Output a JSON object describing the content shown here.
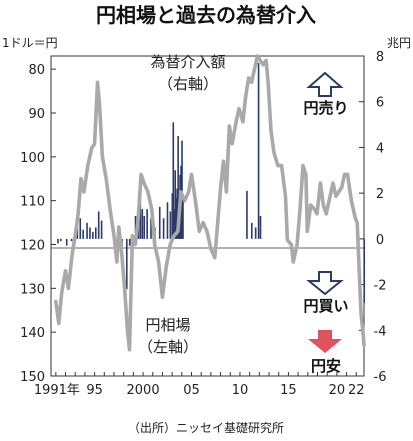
{
  "chart_data": {
    "type": "line",
    "title": "円相場と過去の為替介入",
    "left_axis_unit": "1ドル＝円",
    "right_axis_unit": "兆円",
    "left_axis": {
      "range": [
        150,
        77
      ],
      "ticks": [
        80,
        90,
        100,
        110,
        120,
        130,
        140,
        150
      ],
      "inverted": true
    },
    "right_axis": {
      "range": [
        -6,
        8
      ],
      "ticks": [
        8,
        6,
        4,
        2,
        0,
        -2,
        -4,
        -6
      ]
    },
    "x_range": [
      1990.5,
      2022.8
    ],
    "x_ticks": [
      {
        "v": 1991,
        "label": "1991年"
      },
      {
        "v": 1995,
        "label": "95"
      },
      {
        "v": 2000,
        "label": "2000"
      },
      {
        "v": 2005,
        "label": "05"
      },
      {
        "v": 2010,
        "label": "10"
      },
      {
        "v": 2015,
        "label": "15"
      },
      {
        "v": 2020,
        "label": "20"
      },
      {
        "v": 2022,
        "label": "22"
      }
    ],
    "annotations": {
      "intervention_label": "為替介入額",
      "intervention_axis": "（右軸）",
      "rate_label": "円相場",
      "rate_axis": "（左軸）",
      "yen_sell": "円売り",
      "yen_buy": "円買い",
      "yen_weak": "円安"
    },
    "source": "（出所）ニッセイ基礎研究所",
    "colors": {
      "rate_line": "#a9a9a9",
      "bars": "#2b3a67",
      "arrow_down": "#e0535c",
      "outline_arrow": "#2b3a67"
    },
    "series": [
      {
        "axis": "left",
        "points": [
          [
            1991.0,
            133
          ],
          [
            1991.3,
            138
          ],
          [
            1991.6,
            131
          ],
          [
            1992.0,
            126
          ],
          [
            1992.3,
            130
          ],
          [
            1992.7,
            122
          ],
          [
            1993.0,
            118
          ],
          [
            1993.3,
            113
          ],
          [
            1993.6,
            105
          ],
          [
            1993.9,
            108
          ],
          [
            1994.3,
            102
          ],
          [
            1994.7,
            98
          ],
          [
            1995.0,
            97
          ],
          [
            1995.3,
            83
          ],
          [
            1995.5,
            88
          ],
          [
            1995.8,
            100
          ],
          [
            1996.2,
            105
          ],
          [
            1996.6,
            112
          ],
          [
            1997.0,
            118
          ],
          [
            1997.3,
            124
          ],
          [
            1997.5,
            116
          ],
          [
            1997.8,
            122
          ],
          [
            1998.1,
            130
          ],
          [
            1998.4,
            140
          ],
          [
            1998.6,
            144
          ],
          [
            1998.9,
            118
          ],
          [
            1999.2,
            120
          ],
          [
            1999.5,
            114
          ],
          [
            1999.8,
            104
          ],
          [
            2000.1,
            106
          ],
          [
            2000.5,
            108
          ],
          [
            2000.9,
            112
          ],
          [
            2001.2,
            120
          ],
          [
            2001.6,
            124
          ],
          [
            2002.0,
            132
          ],
          [
            2002.4,
            125
          ],
          [
            2002.8,
            120
          ],
          [
            2003.2,
            118
          ],
          [
            2003.6,
            117
          ],
          [
            2003.9,
            108
          ],
          [
            2004.3,
            110
          ],
          [
            2004.7,
            108
          ],
          [
            2005.0,
            104
          ],
          [
            2005.4,
            110
          ],
          [
            2005.8,
            117
          ],
          [
            2006.2,
            115
          ],
          [
            2006.6,
            117
          ],
          [
            2007.0,
            121
          ],
          [
            2007.4,
            123
          ],
          [
            2007.7,
            115
          ],
          [
            2008.0,
            107
          ],
          [
            2008.3,
            101
          ],
          [
            2008.6,
            108
          ],
          [
            2008.9,
            93
          ],
          [
            2009.2,
            97
          ],
          [
            2009.6,
            92
          ],
          [
            2009.9,
            89
          ],
          [
            2010.3,
            92
          ],
          [
            2010.6,
            86
          ],
          [
            2010.9,
            82
          ],
          [
            2011.2,
            83
          ],
          [
            2011.5,
            80
          ],
          [
            2011.8,
            77
          ],
          [
            2012.1,
            78
          ],
          [
            2012.4,
            79
          ],
          [
            2012.7,
            78
          ],
          [
            2012.9,
            83
          ],
          [
            2013.2,
            94
          ],
          [
            2013.5,
            99
          ],
          [
            2013.9,
            102
          ],
          [
            2014.3,
            102
          ],
          [
            2014.7,
            109
          ],
          [
            2014.9,
            119
          ],
          [
            2015.3,
            120
          ],
          [
            2015.5,
            124
          ],
          [
            2015.9,
            120
          ],
          [
            2016.2,
            112
          ],
          [
            2016.5,
            102
          ],
          [
            2016.8,
            104
          ],
          [
            2016.95,
            117
          ],
          [
            2017.3,
            111
          ],
          [
            2017.7,
            112
          ],
          [
            2017.95,
            113
          ],
          [
            2018.3,
            106
          ],
          [
            2018.6,
            111
          ],
          [
            2018.9,
            113
          ],
          [
            2019.2,
            110
          ],
          [
            2019.6,
            106
          ],
          [
            2019.9,
            109
          ],
          [
            2020.2,
            108
          ],
          [
            2020.5,
            107
          ],
          [
            2020.8,
            104
          ],
          [
            2021.1,
            104
          ],
          [
            2021.5,
            110
          ],
          [
            2021.9,
            114
          ],
          [
            2022.1,
            115
          ],
          [
            2022.3,
            126
          ],
          [
            2022.5,
            136
          ],
          [
            2022.7,
            140
          ],
          [
            2022.8,
            143
          ]
        ]
      },
      {
        "axis": "right",
        "type": "bar",
        "points": [
          [
            1991.2,
            -0.2
          ],
          [
            1991.5,
            -0.1
          ],
          [
            1992.1,
            -0.3
          ],
          [
            1992.6,
            -0.1
          ],
          [
            1993.2,
            0.6
          ],
          [
            1993.5,
            0.9
          ],
          [
            1993.8,
            0.4
          ],
          [
            1994.2,
            0.7
          ],
          [
            1994.5,
            0.5
          ],
          [
            1994.8,
            0.3
          ],
          [
            1995.1,
            0.5
          ],
          [
            1995.4,
            1.2
          ],
          [
            1995.7,
            0.8
          ],
          [
            1997.8,
            -0.6
          ],
          [
            1998.3,
            -2.2
          ],
          [
            1998.6,
            -0.3
          ],
          [
            1999.2,
            1.0
          ],
          [
            1999.5,
            1.5
          ],
          [
            1999.7,
            2.2
          ],
          [
            1999.9,
            1.3
          ],
          [
            2000.1,
            1.0
          ],
          [
            2000.4,
            1.3
          ],
          [
            2000.8,
            0.9
          ],
          [
            2001.2,
            0.5
          ],
          [
            2001.7,
            1.4
          ],
          [
            2002.1,
            0.9
          ],
          [
            2002.5,
            1.6
          ],
          [
            2002.8,
            1.2
          ],
          [
            2003.0,
            2.0
          ],
          [
            2003.1,
            5.1
          ],
          [
            2003.2,
            1.3
          ],
          [
            2003.3,
            3.0
          ],
          [
            2003.4,
            1.8
          ],
          [
            2003.5,
            2.2
          ],
          [
            2003.6,
            4.5
          ],
          [
            2003.7,
            1.4
          ],
          [
            2003.8,
            2.8
          ],
          [
            2003.9,
            3.2
          ],
          [
            2004.0,
            4.3
          ],
          [
            2004.1,
            1.9
          ],
          [
            2010.7,
            2.1
          ],
          [
            2011.2,
            0.7
          ],
          [
            2011.6,
            0.5
          ],
          [
            2011.9,
            7.7
          ],
          [
            2012.1,
            1.0
          ],
          [
            2022.8,
            -2.8
          ]
        ]
      }
    ]
  }
}
